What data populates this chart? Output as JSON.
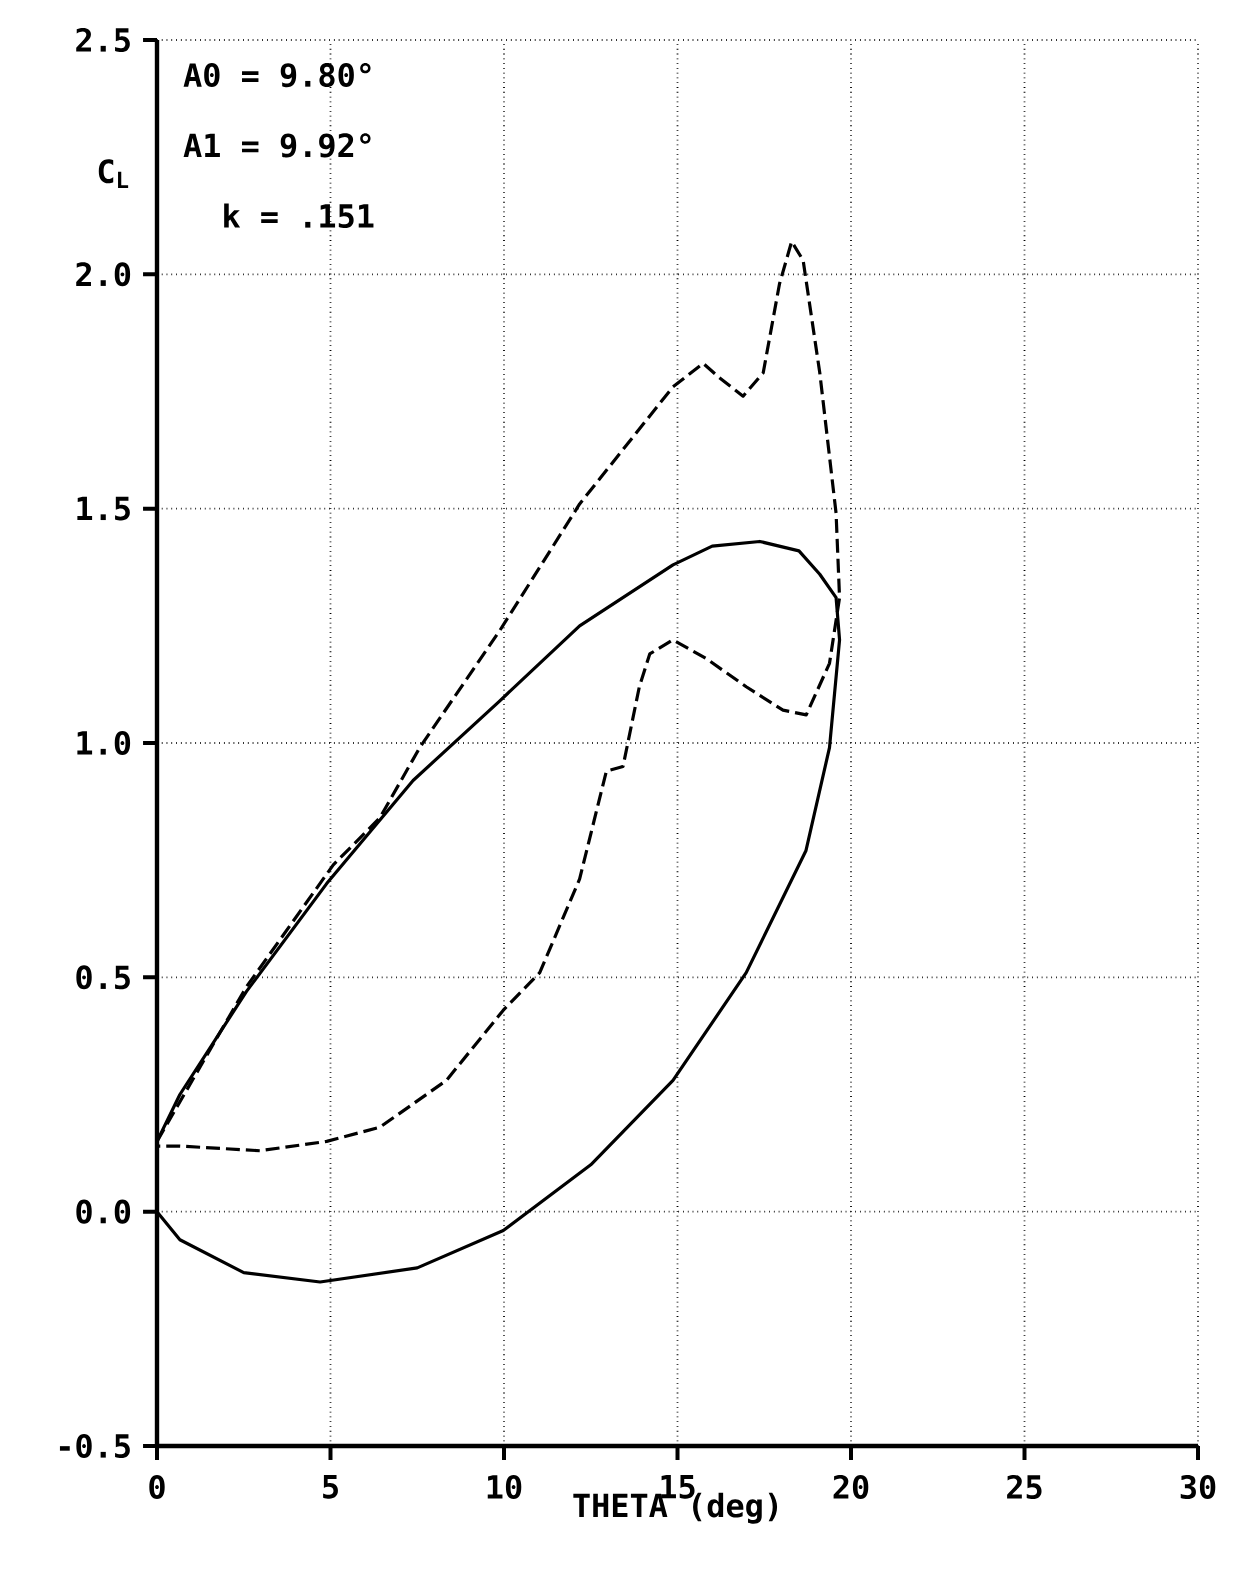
{
  "chart_data": {
    "type": "line",
    "xlabel": "THETA (deg)",
    "ylabel": "C$_{L}$",
    "annotations": [
      "A0 = 9.80°",
      "A1 = 9.92°",
      "k = .151"
    ],
    "xlim": [
      0,
      30
    ],
    "ylim": [
      -0.5,
      2.5
    ],
    "xticks": [
      0,
      5,
      10,
      15,
      20,
      25,
      30
    ],
    "yticks": [
      {
        "value": -0.5,
        "label": "-0.5"
      },
      {
        "value": 0,
        "label": "0.0"
      },
      {
        "value": 0.5,
        "label": "0.5"
      },
      {
        "value": 1,
        "label": "1.0"
      },
      {
        "value": 1.5,
        "label": "1.5"
      },
      {
        "value": 2,
        "label": "2.0"
      },
      {
        "value": 2.5,
        "label": "2.5"
      }
    ],
    "grid": true,
    "series": [
      {
        "color": "#000000",
        "line_style": "solid",
        "x": [
          0,
          0.66,
          2.5,
          4.7,
          7.5,
          9.98,
          12.5,
          14.87,
          16.98,
          18.7,
          19.38,
          19.67,
          19.57,
          19.1,
          18.5,
          17.37,
          16,
          14.87,
          12.18,
          9.88,
          7.38,
          4.89,
          2.58,
          0.66,
          0
        ],
        "values": [
          0,
          -0.06,
          -0.13,
          -0.15,
          -0.12,
          -0.04,
          0.1,
          0.28,
          0.51,
          0.77,
          0.99,
          1.22,
          1.31,
          1.36,
          1.41,
          1.43,
          1.42,
          1.38,
          1.25,
          1.09,
          0.92,
          0.7,
          0.47,
          0.25,
          0.15
        ]
      },
      {
        "color": "#000000",
        "line_style": "dashed",
        "x": [
          0,
          2.58,
          5.08,
          6.42,
          7.57,
          9.88,
          12.18,
          14.87,
          15.74,
          16.2,
          16.89,
          17.47,
          17.94,
          18.29,
          18.62,
          19.1,
          19.57,
          19.67,
          19.38,
          18.71,
          18.04,
          16.98,
          15.83,
          14.87,
          14.2,
          13.9,
          13.43,
          12.95,
          12.18,
          11.03,
          9.98,
          8.34,
          6.42,
          4.89,
          2.97,
          0.66,
          0
        ],
        "values": [
          0.15,
          0.48,
          0.74,
          0.84,
          0.99,
          1.24,
          1.51,
          1.76,
          1.81,
          1.78,
          1.74,
          1.79,
          1.98,
          2.07,
          2.03,
          1.79,
          1.49,
          1.31,
          1.17,
          1.06,
          1.07,
          1.12,
          1.18,
          1.22,
          1.19,
          1.12,
          0.95,
          0.94,
          0.71,
          0.51,
          0.43,
          0.28,
          0.18,
          0.15,
          0.13,
          0.14,
          0.14
        ]
      }
    ]
  }
}
